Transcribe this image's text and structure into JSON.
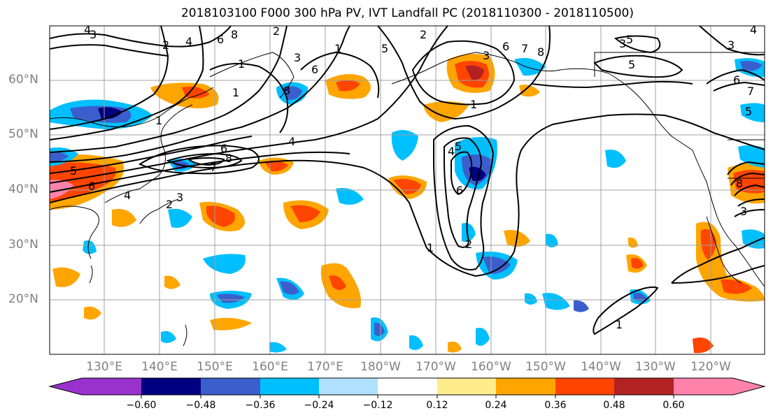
{
  "title": "2018103100 F000 300 hPa PV, IVT Landfall PC (2018110300 - 2018110500)",
  "latitude_labels": [
    "60°N",
    "50°N",
    "40°N",
    "30°N",
    "20°N"
  ],
  "longitude_labels": [
    "130°E",
    "140°E",
    "150°E",
    "160°E",
    "170°E",
    "180°W",
    "170°W",
    "160°W",
    "150°W",
    "140°W",
    "130°W",
    "120°W"
  ],
  "colorbar": {
    "ticks": [
      "−0.60",
      "−0.48",
      "−0.36",
      "−0.24",
      "−0.12",
      "0.12",
      "0.24",
      "0.36",
      "0.48",
      "0.60"
    ],
    "colors": [
      "#9932cc",
      "#000080",
      "#3a5fcd",
      "#00bfff",
      "#b0e2ff",
      "#ffffff",
      "#ffec8b",
      "#ffa500",
      "#ff4500",
      "#b22222",
      "#ff82ab"
    ]
  },
  "contour_labels": [
    "4",
    "3",
    "2",
    "1",
    "6",
    "8",
    "5",
    "7"
  ]
}
